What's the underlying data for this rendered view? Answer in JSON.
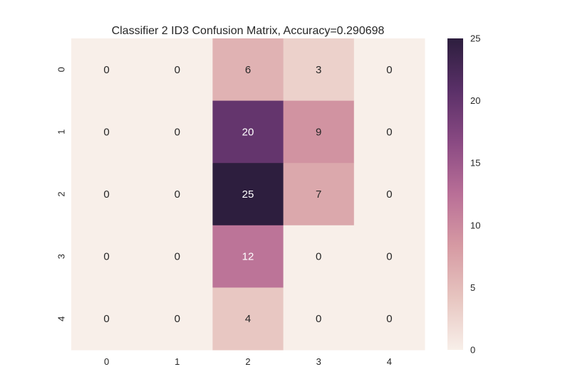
{
  "chart_data": {
    "type": "heatmap",
    "title": "Classifier 2 ID3 Confusion Matrix, Accuracy=0.290698",
    "x_categories": [
      "0",
      "1",
      "2",
      "3",
      "4"
    ],
    "y_categories": [
      "0",
      "1",
      "2",
      "3",
      "4"
    ],
    "values": [
      [
        0,
        0,
        6,
        3,
        0
      ],
      [
        0,
        0,
        20,
        9,
        0
      ],
      [
        0,
        0,
        25,
        7,
        0
      ],
      [
        0,
        0,
        12,
        0,
        0
      ],
      [
        0,
        0,
        4,
        0,
        0
      ]
    ],
    "colorbar": {
      "range": [
        0,
        25
      ],
      "ticks": [
        "0",
        "5",
        "10",
        "15",
        "20",
        "25"
      ],
      "colors": [
        "#f8efe9",
        "#e7c5c0",
        "#d69aa3",
        "#b96f97",
        "#8a4a83",
        "#5a3068",
        "#2d1e3e"
      ]
    },
    "xlabel": "",
    "ylabel": "",
    "grid": false
  }
}
